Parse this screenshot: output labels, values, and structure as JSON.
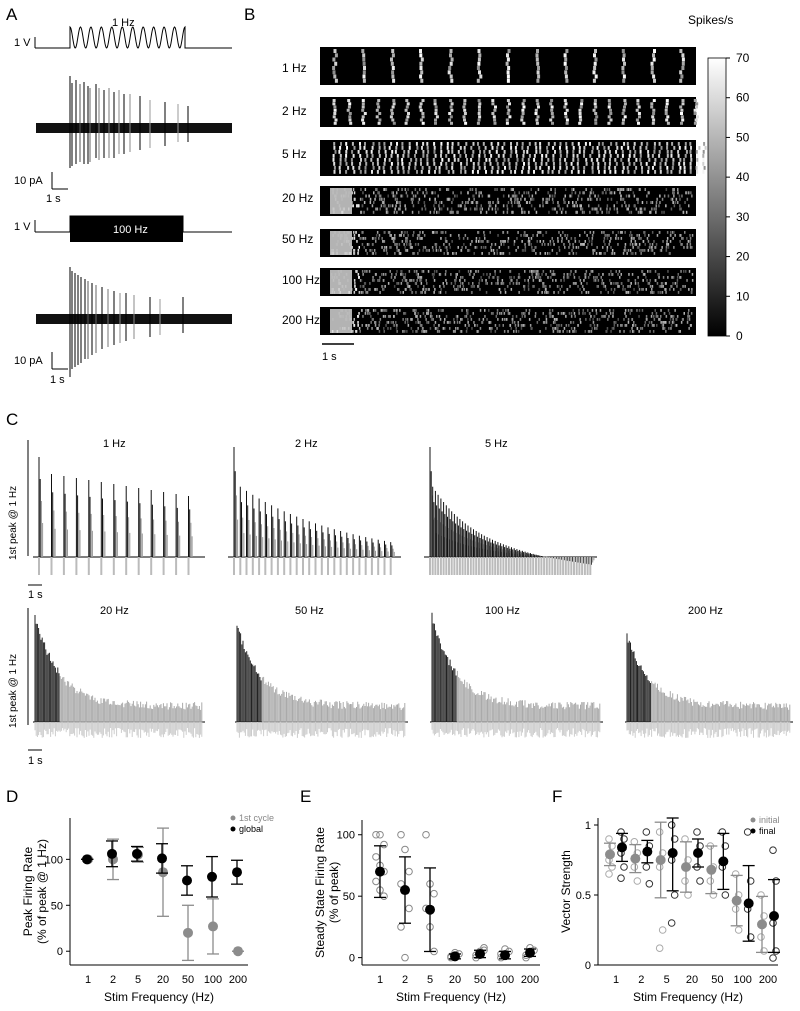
{
  "panel_labels": {
    "a": "A",
    "b": "B",
    "c": "C",
    "d": "D",
    "e": "E",
    "f": "F"
  },
  "panel_a": {
    "sine_label": "1 Hz",
    "volt_label_1": "1 V",
    "volt_label_2": "1 V",
    "pulse_label": "100 Hz",
    "scale_pa_1": "10 pA",
    "scale_s_1": "1 s",
    "scale_pa_2": "10 pA",
    "scale_s_2": "1 s"
  },
  "panel_b": {
    "rows": [
      "1 Hz",
      "2 Hz",
      "5 Hz",
      "20 Hz",
      "50 Hz",
      "100 Hz",
      "200 Hz"
    ],
    "colorbar_title": "Spikes/s",
    "colorbar_ticks": [
      "70",
      "60",
      "50",
      "40",
      "30",
      "20",
      "10",
      "0"
    ],
    "time_scale": "1 s"
  },
  "panel_c": {
    "ylabel_top": "1st peak @ 1 Hz",
    "ylabel_bottom": "1st peak @ 1 Hz",
    "top_titles": [
      "1 Hz",
      "2 Hz",
      "5 Hz"
    ],
    "bottom_titles": [
      "20 Hz",
      "50 Hz",
      "100 Hz",
      "200 Hz"
    ],
    "scale_top": "1 s",
    "scale_bottom": "1 s"
  },
  "chart_data": [
    {
      "type": "scatter",
      "panel": "D",
      "xlabel": "Stim Frequency (Hz)",
      "ylabel": "Peak Firing Rate",
      "ylabel2": "(% of peak @ 1 Hz)",
      "categories": [
        "1",
        "2",
        "5",
        "20",
        "50",
        "100",
        "200"
      ],
      "yticks": [
        "0",
        "50",
        "100"
      ],
      "ylim": [
        -15,
        145
      ],
      "legend": [
        "1st cycle",
        "global"
      ],
      "legend_position": "top-right",
      "series": [
        {
          "name": "1st cycle",
          "color": "#8c8c8c",
          "values": [
            100,
            100,
            105,
            86,
            20,
            27,
            0
          ],
          "err": [
            0,
            22,
            8,
            48,
            30,
            30,
            0
          ]
        },
        {
          "name": "global",
          "color": "#000000",
          "values": [
            100,
            106,
            106,
            101,
            77,
            81,
            86
          ],
          "err": [
            0,
            14,
            8,
            16,
            16,
            22,
            13
          ]
        }
      ]
    },
    {
      "type": "scatter",
      "panel": "E",
      "xlabel": "Stim Frequency (Hz)",
      "ylabel": "Steady State Firing Rate",
      "ylabel2": "(% of peak)",
      "categories": [
        "1",
        "2",
        "5",
        "20",
        "50",
        "100",
        "200"
      ],
      "yticks": [
        "0",
        "50",
        "100"
      ],
      "ylim": [
        -6,
        112
      ],
      "series": [
        {
          "name": "mean",
          "color": "#000000",
          "values": [
            70,
            55,
            39,
            1,
            3,
            2,
            4
          ],
          "err": [
            21,
            27,
            34,
            2,
            3,
            3,
            3
          ]
        }
      ],
      "points": [
        [
          100,
          100,
          92,
          82,
          75,
          70,
          62,
          55,
          50
        ],
        [
          100,
          88,
          70,
          60,
          55,
          40,
          25,
          0
        ],
        [
          100,
          60,
          52,
          40,
          25,
          5
        ],
        [
          0,
          2,
          3,
          1,
          4
        ],
        [
          0,
          3,
          6,
          2,
          5,
          8
        ],
        [
          0,
          2,
          5,
          3,
          7
        ],
        [
          0,
          3,
          6,
          2,
          8
        ]
      ]
    },
    {
      "type": "scatter",
      "panel": "F",
      "xlabel": "Stim Frequency (Hz)",
      "ylabel": "Vector Strength",
      "categories": [
        "1",
        "2",
        "5",
        "20",
        "50",
        "100",
        "200"
      ],
      "yticks": [
        "0",
        "0.5",
        "1"
      ],
      "ylim": [
        0,
        1.05
      ],
      "legend": [
        "initial",
        "final"
      ],
      "legend_position": "top-right",
      "series": [
        {
          "name": "initial",
          "color": "#8c8c8c",
          "values": [
            0.79,
            0.76,
            0.75,
            0.7,
            0.68,
            0.46,
            0.29
          ],
          "err": [
            0.08,
            0.1,
            0.27,
            0.18,
            0.17,
            0.18,
            0.2
          ]
        },
        {
          "name": "final",
          "color": "#000000",
          "values": [
            0.84,
            0.81,
            0.8,
            0.8,
            0.74,
            0.44,
            0.35
          ],
          "err": [
            0.1,
            0.08,
            0.27,
            0.1,
            0.2,
            0.27,
            0.26
          ]
        }
      ],
      "points_initial": [
        [
          0.9,
          0.85,
          0.75,
          0.7,
          0.65
        ],
        [
          0.88,
          0.8,
          0.7,
          0.6
        ],
        [
          0.95,
          0.8,
          0.7,
          0.25,
          0.12
        ],
        [
          0.9,
          0.75,
          0.6,
          0.5
        ],
        [
          0.85,
          0.7,
          0.6,
          0.5
        ],
        [
          0.65,
          0.5,
          0.4,
          0.25
        ],
        [
          0.5,
          0.35,
          0.2,
          0.1
        ]
      ],
      "points_final": [
        [
          0.95,
          0.9,
          0.8,
          0.7,
          0.62
        ],
        [
          0.95,
          0.85,
          0.7,
          0.58
        ],
        [
          1.0,
          0.9,
          0.75,
          0.5,
          0.3
        ],
        [
          0.95,
          0.85,
          0.7,
          0.6
        ],
        [
          0.95,
          0.85,
          0.7,
          0.5
        ],
        [
          0.95,
          0.6,
          0.4,
          0.2
        ],
        [
          0.82,
          0.6,
          0.3,
          0.1,
          0.05
        ]
      ]
    }
  ]
}
